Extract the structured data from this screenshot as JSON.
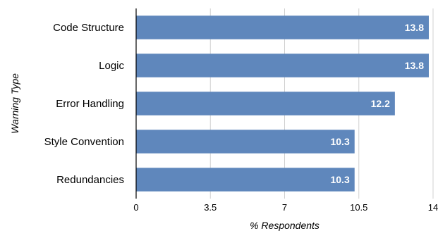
{
  "chart_data": {
    "type": "bar",
    "orientation": "horizontal",
    "categories": [
      "Code Structure",
      "Logic",
      "Error Handling",
      "Style Convention",
      "Redundancies"
    ],
    "values": [
      13.8,
      13.8,
      12.2,
      10.3,
      10.3
    ],
    "data_labels": [
      "13.8",
      "13.8",
      "12.2",
      "10.3",
      "10.3"
    ],
    "xlabel": "% Respondents",
    "ylabel": "Warning Type",
    "xlim": [
      0,
      14
    ],
    "xticks": [
      0,
      3.5,
      7,
      10.5,
      14
    ],
    "xtick_labels": [
      "0",
      "3.5",
      "7",
      "10.5",
      "14"
    ],
    "grid": true,
    "bar_color": "#5f87bc"
  }
}
